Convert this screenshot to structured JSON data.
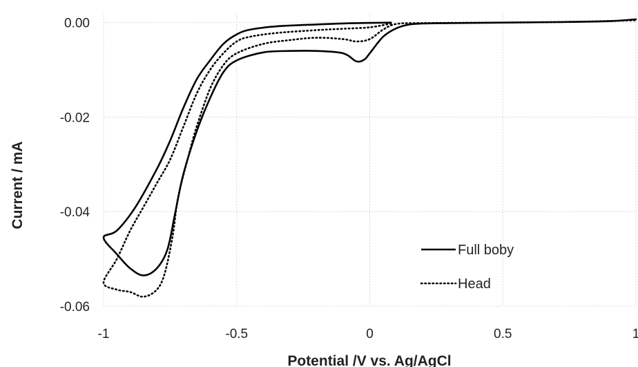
{
  "chart_data": {
    "type": "line",
    "title": "",
    "xlabel": "Potential /V vs. Ag/AgCl",
    "ylabel": "Current / mA",
    "xlim": [
      -1,
      1
    ],
    "ylim": [
      -0.06,
      0.002
    ],
    "x_ticks": [
      "-1",
      "-0.5",
      "0",
      "0.5",
      "1"
    ],
    "y_ticks": [
      "0.00",
      "-0.02",
      "-0.04",
      "-0.06"
    ],
    "x_tick_values": [
      -1,
      -0.5,
      0,
      0.5,
      1
    ],
    "y_tick_values": [
      0,
      -0.02,
      -0.04,
      -0.06
    ],
    "grid": true,
    "legend_position": "bottom-right",
    "series": [
      {
        "name": "Full boby",
        "style": "solid",
        "color": "#000000",
        "points": [
          [
            0.08,
            0.0
          ],
          [
            -0.05,
            -0.0001
          ],
          [
            -0.2,
            -0.0004
          ],
          [
            -0.35,
            -0.0008
          ],
          [
            -0.45,
            -0.0015
          ],
          [
            -0.5,
            -0.0025
          ],
          [
            -0.55,
            -0.0045
          ],
          [
            -0.6,
            -0.008
          ],
          [
            -0.65,
            -0.012
          ],
          [
            -0.7,
            -0.018
          ],
          [
            -0.75,
            -0.025
          ],
          [
            -0.8,
            -0.031
          ],
          [
            -0.88,
            -0.039
          ],
          [
            -0.95,
            -0.044
          ],
          [
            -1.0,
            -0.0455
          ],
          [
            -0.95,
            -0.049
          ],
          [
            -0.9,
            -0.052
          ],
          [
            -0.85,
            -0.0535
          ],
          [
            -0.8,
            -0.052
          ],
          [
            -0.76,
            -0.048
          ],
          [
            -0.73,
            -0.04
          ],
          [
            -0.7,
            -0.032
          ],
          [
            -0.65,
            -0.023
          ],
          [
            -0.6,
            -0.016
          ],
          [
            -0.55,
            -0.0105
          ],
          [
            -0.5,
            -0.008
          ],
          [
            -0.4,
            -0.0063
          ],
          [
            -0.3,
            -0.006
          ],
          [
            -0.2,
            -0.006
          ],
          [
            -0.1,
            -0.0065
          ],
          [
            -0.05,
            -0.0082
          ],
          [
            -0.02,
            -0.0078
          ],
          [
            0.0,
            -0.0065
          ],
          [
            0.05,
            -0.003
          ],
          [
            0.1,
            -0.0012
          ],
          [
            0.15,
            -0.0004
          ],
          [
            0.2,
            -0.0002
          ],
          [
            0.3,
            -0.0001
          ],
          [
            0.5,
            0.0
          ],
          [
            0.7,
            0.0001
          ],
          [
            0.9,
            0.0003
          ],
          [
            1.0,
            0.0007
          ]
        ]
      },
      {
        "name": "Head",
        "style": "dotted",
        "color": "#000000",
        "points": [
          [
            0.08,
            -0.0002
          ],
          [
            0.0,
            -0.001
          ],
          [
            -0.1,
            -0.0013
          ],
          [
            -0.2,
            -0.0016
          ],
          [
            -0.35,
            -0.0022
          ],
          [
            -0.45,
            -0.003
          ],
          [
            -0.5,
            -0.004
          ],
          [
            -0.55,
            -0.0065
          ],
          [
            -0.6,
            -0.01
          ],
          [
            -0.65,
            -0.015
          ],
          [
            -0.7,
            -0.022
          ],
          [
            -0.75,
            -0.029
          ],
          [
            -0.8,
            -0.034
          ],
          [
            -0.85,
            -0.039
          ],
          [
            -0.9,
            -0.044
          ],
          [
            -0.95,
            -0.05
          ],
          [
            -1.0,
            -0.055
          ],
          [
            -0.95,
            -0.0565
          ],
          [
            -0.9,
            -0.057
          ],
          [
            -0.85,
            -0.058
          ],
          [
            -0.8,
            -0.0565
          ],
          [
            -0.77,
            -0.053
          ],
          [
            -0.74,
            -0.045
          ],
          [
            -0.72,
            -0.037
          ],
          [
            -0.68,
            -0.028
          ],
          [
            -0.65,
            -0.022
          ],
          [
            -0.6,
            -0.014
          ],
          [
            -0.55,
            -0.009
          ],
          [
            -0.5,
            -0.0065
          ],
          [
            -0.4,
            -0.0045
          ],
          [
            -0.3,
            -0.0037
          ],
          [
            -0.2,
            -0.0032
          ],
          [
            -0.1,
            -0.0035
          ],
          [
            -0.05,
            -0.004
          ],
          [
            0.0,
            -0.0035
          ],
          [
            0.05,
            -0.0015
          ],
          [
            0.1,
            -0.0003
          ],
          [
            0.2,
            -0.0001
          ],
          [
            0.5,
            0.0
          ],
          [
            0.8,
            0.0002
          ],
          [
            1.0,
            0.0005
          ]
        ]
      }
    ]
  }
}
